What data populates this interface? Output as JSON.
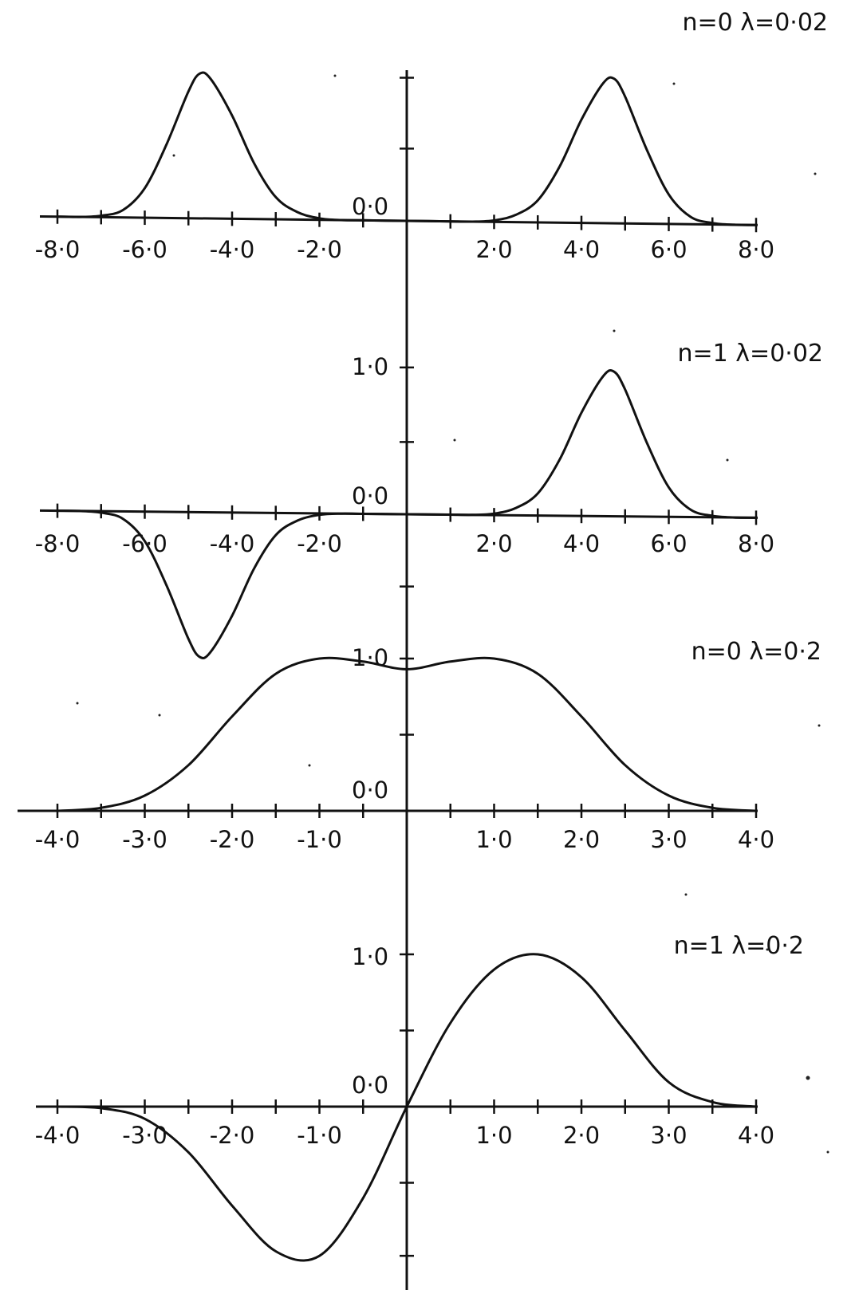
{
  "chart_data": [
    {
      "type": "line",
      "title": "n=0  λ=0·02",
      "xlim": [
        -8,
        8
      ],
      "x_tick_labels": [
        "-8·0",
        "-6·0",
        "-4·0",
        "-2·0",
        "2·0",
        "4·0",
        "6·0",
        "8·0"
      ],
      "y_tick_labels": [
        "0·0"
      ],
      "series": [
        {
          "x": [
            -8.0,
            -7.5,
            -7.0,
            -6.5,
            -6.0,
            -5.5,
            -5.0,
            -4.75,
            -4.5,
            -4.0,
            -3.5,
            -3.0,
            -2.5,
            -2.0,
            -1.5,
            -1.0,
            -0.5,
            0.0,
            0.5,
            1.0,
            1.5,
            2.0,
            2.5,
            3.0,
            3.5,
            4.0,
            4.5,
            4.75,
            5.0,
            5.5,
            6.0,
            6.5,
            7.0,
            7.5,
            8.0
          ],
          "y": [
            0.0,
            0.0,
            0.01,
            0.05,
            0.2,
            0.5,
            0.86,
            0.98,
            0.95,
            0.7,
            0.38,
            0.15,
            0.05,
            0.01,
            0.0,
            0.0,
            0.0,
            0.0,
            0.0,
            0.0,
            0.0,
            0.01,
            0.05,
            0.15,
            0.38,
            0.7,
            0.95,
            0.98,
            0.86,
            0.5,
            0.2,
            0.05,
            0.01,
            0.0,
            0.0
          ]
        }
      ]
    },
    {
      "type": "line",
      "title": "n=1  λ=0·02",
      "xlim": [
        -8,
        8
      ],
      "x_tick_labels": [
        "-8·0",
        "-6·0",
        "-4·0",
        "-2·0",
        "2·0",
        "4·0",
        "6·0",
        "8·0"
      ],
      "y_tick_labels": [
        "1·0",
        "0·0"
      ],
      "series": [
        {
          "x": [
            -8.0,
            -7.5,
            -7.0,
            -6.5,
            -6.0,
            -5.5,
            -5.0,
            -4.75,
            -4.5,
            -4.0,
            -3.5,
            -3.0,
            -2.5,
            -2.0,
            -1.5,
            -1.0,
            -0.5,
            0.0,
            0.5,
            1.0,
            1.5,
            2.0,
            2.5,
            3.0,
            3.5,
            4.0,
            4.5,
            4.75,
            5.0,
            5.5,
            6.0,
            6.5,
            7.0,
            7.5,
            8.0
          ],
          "y": [
            0.0,
            0.0,
            -0.01,
            -0.05,
            -0.2,
            -0.5,
            -0.86,
            -0.98,
            -0.95,
            -0.7,
            -0.38,
            -0.15,
            -0.05,
            -0.01,
            0.0,
            0.0,
            0.0,
            0.0,
            0.0,
            0.0,
            0.0,
            0.01,
            0.05,
            0.15,
            0.38,
            0.7,
            0.95,
            0.98,
            0.86,
            0.5,
            0.2,
            0.05,
            0.01,
            0.0,
            0.0
          ]
        }
      ]
    },
    {
      "type": "line",
      "title": "n=0  λ=0·2",
      "xlim": [
        -4,
        4
      ],
      "x_tick_labels": [
        "-4·0",
        "-3·0",
        "-2·0",
        "-1·0",
        "1·0",
        "2·0",
        "3·0",
        "4·0"
      ],
      "y_tick_labels": [
        "1·0",
        "0·0"
      ],
      "series": [
        {
          "x": [
            -4.0,
            -3.5,
            -3.0,
            -2.5,
            -2.0,
            -1.5,
            -1.0,
            -0.5,
            0.0,
            0.5,
            1.0,
            1.5,
            2.0,
            2.5,
            3.0,
            3.5,
            4.0
          ],
          "y": [
            0.0,
            0.02,
            0.1,
            0.3,
            0.62,
            0.9,
            1.0,
            0.98,
            0.93,
            0.98,
            1.0,
            0.9,
            0.62,
            0.3,
            0.1,
            0.02,
            0.0
          ]
        }
      ]
    },
    {
      "type": "line",
      "title": "n=1  λ=0·2",
      "xlim": [
        -4,
        4
      ],
      "x_tick_labels": [
        "-4·0",
        "-3·0",
        "-2·0",
        "-1·0",
        "1·0",
        "2·0",
        "3·0",
        "4·0"
      ],
      "y_tick_labels": [
        "1·0",
        "0·0"
      ],
      "series": [
        {
          "x": [
            -4.0,
            -3.5,
            -3.0,
            -2.5,
            -2.0,
            -1.5,
            -1.0,
            -0.5,
            0.0,
            0.5,
            1.0,
            1.5,
            2.0,
            2.5,
            3.0,
            3.5,
            4.0
          ],
          "y": [
            0.0,
            -0.01,
            -0.08,
            -0.3,
            -0.65,
            -0.95,
            -0.98,
            -0.6,
            0.0,
            0.55,
            0.9,
            1.0,
            0.85,
            0.5,
            0.16,
            0.03,
            0.0
          ]
        }
      ]
    }
  ]
}
